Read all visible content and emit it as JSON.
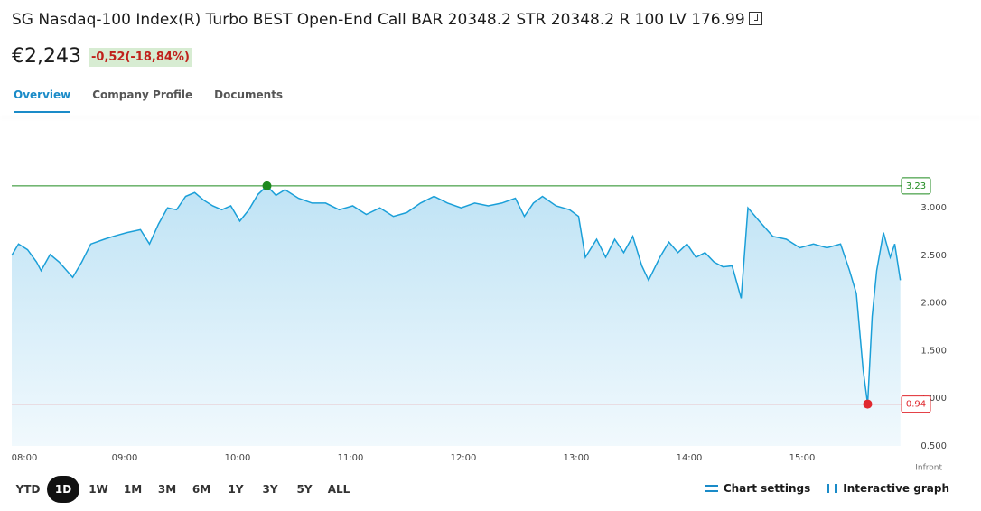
{
  "header": {
    "title": "SG Nasdaq-100 Index(R) Turbo BEST Open-End Call BAR 20348.2 STR 20348.2 R 100 LV 176.99",
    "price": "€2,243",
    "change": "-0,52(-18,84%)"
  },
  "tabs": [
    {
      "label": "Overview",
      "active": true
    },
    {
      "label": "Company Profile",
      "active": false
    },
    {
      "label": "Documents",
      "active": false
    }
  ],
  "chart_data": {
    "type": "line",
    "color": "#1a9fd8",
    "x": [
      8.0,
      8.06,
      8.14,
      8.22,
      8.26,
      8.34,
      8.42,
      8.54,
      8.62,
      8.7,
      8.82,
      8.9,
      9.02,
      9.14,
      9.22,
      9.3,
      9.38,
      9.46,
      9.54,
      9.62,
      9.7,
      9.78,
      9.86,
      9.94,
      10.02,
      10.1,
      10.18,
      10.26,
      10.34,
      10.42,
      10.54,
      10.66,
      10.78,
      10.9,
      11.02,
      11.14,
      11.26,
      11.38,
      11.5,
      11.62,
      11.74,
      11.86,
      11.98,
      12.1,
      12.22,
      12.34,
      12.46,
      12.54,
      12.62,
      12.7,
      12.82,
      12.94,
      13.02,
      13.08,
      13.18,
      13.26,
      13.34,
      13.42,
      13.5,
      13.58,
      13.64,
      13.74,
      13.82,
      13.9,
      13.98,
      14.06,
      14.14,
      14.22,
      14.3,
      14.38,
      14.46,
      14.52,
      14.62,
      14.74,
      14.86,
      14.98,
      15.1,
      15.22,
      15.34,
      15.42,
      15.48,
      15.54,
      15.58,
      15.62,
      15.66,
      15.72,
      15.78,
      15.82,
      15.87
    ],
    "values": [
      2.5,
      2.62,
      2.56,
      2.43,
      2.34,
      2.51,
      2.43,
      2.27,
      2.43,
      2.62,
      2.67,
      2.7,
      2.74,
      2.77,
      2.62,
      2.83,
      3.0,
      2.98,
      3.12,
      3.16,
      3.08,
      3.02,
      2.98,
      3.02,
      2.86,
      2.98,
      3.14,
      3.23,
      3.13,
      3.19,
      3.1,
      3.05,
      3.05,
      2.98,
      3.02,
      2.93,
      3.0,
      2.91,
      2.95,
      3.05,
      3.12,
      3.05,
      3.0,
      3.05,
      3.02,
      3.05,
      3.1,
      2.91,
      3.05,
      3.12,
      3.02,
      2.98,
      2.91,
      2.48,
      2.67,
      2.48,
      2.67,
      2.53,
      2.7,
      2.39,
      2.24,
      2.48,
      2.64,
      2.53,
      2.62,
      2.48,
      2.53,
      2.43,
      2.38,
      2.39,
      2.05,
      3.0,
      2.86,
      2.7,
      2.67,
      2.58,
      2.62,
      2.58,
      2.62,
      2.34,
      2.1,
      1.3,
      0.94,
      1.86,
      2.34,
      2.74,
      2.48,
      2.62,
      2.24
    ],
    "xlim": [
      8,
      15.88
    ],
    "xticks": [
      {
        "value": 8,
        "label": "08:00"
      },
      {
        "value": 9,
        "label": "09:00"
      },
      {
        "value": 10,
        "label": "10:00"
      },
      {
        "value": 11,
        "label": "11:00"
      },
      {
        "value": 12,
        "label": "12:00"
      },
      {
        "value": 13,
        "label": "13:00"
      },
      {
        "value": 14,
        "label": "14:00"
      },
      {
        "value": 15,
        "label": "15:00"
      }
    ],
    "ylim": [
      0.5,
      3.75
    ],
    "yticks": [
      {
        "value": 0.5,
        "label": "0.500"
      },
      {
        "value": 1,
        "label": "1.000"
      },
      {
        "value": 1.5,
        "label": "1.500"
      },
      {
        "value": 2,
        "label": "2.000"
      },
      {
        "value": 2.5,
        "label": "2.500"
      },
      {
        "value": 3,
        "label": "3.000"
      }
    ],
    "grid": false,
    "reference_lines": [
      {
        "value": 3.23,
        "x": 10.26,
        "color": "#1e8a1e"
      },
      {
        "value": 0.94,
        "x": 15.58,
        "color": "#e0282e"
      }
    ],
    "source": "Infront"
  },
  "ranges": {
    "options": [
      "YTD",
      "1D",
      "1W",
      "1M",
      "3M",
      "6M",
      "1Y",
      "3Y",
      "5Y",
      "ALL"
    ],
    "selected": 1
  },
  "actions": [
    "Chart settings",
    "Interactive graph"
  ]
}
